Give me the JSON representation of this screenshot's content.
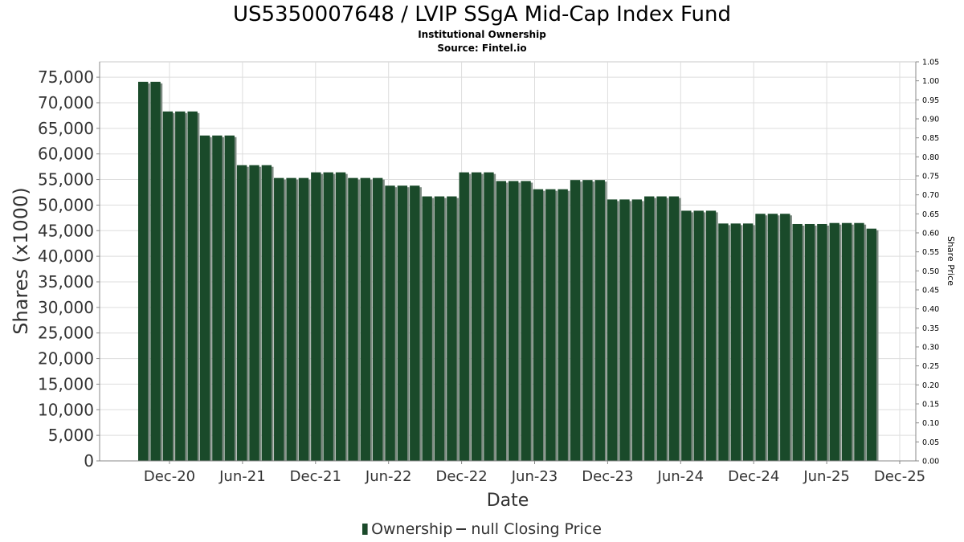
{
  "title": "US5350007648 / LVIP SSgA Mid-Cap Index Fund",
  "subtitle": "Institutional Ownership",
  "source": "Source: Fintel.io",
  "chart_data": {
    "type": "bar",
    "xlabel": "Date",
    "ylabel": "Shares (x1000)",
    "y2label": "Share Price",
    "ylim": [
      0,
      78000
    ],
    "y2lim": [
      0,
      1.05
    ],
    "x_tick_labels": [
      "Dec-20",
      "Jun-21",
      "Dec-21",
      "Jun-22",
      "Dec-22",
      "Jun-23",
      "Dec-23",
      "Jun-24",
      "Dec-24",
      "Jun-25",
      "Dec-25"
    ],
    "y_tick_labels": [
      "0",
      "5,000",
      "10,000",
      "15,000",
      "20,000",
      "25,000",
      "30,000",
      "35,000",
      "40,000",
      "45,000",
      "50,000",
      "55,000",
      "60,000",
      "65,000",
      "70,000",
      "75,000"
    ],
    "y2_tick_labels": [
      "0.00",
      "0.05",
      "0.10",
      "0.15",
      "0.20",
      "0.25",
      "0.30",
      "0.35",
      "0.40",
      "0.45",
      "0.50",
      "0.55",
      "0.60",
      "0.65",
      "0.70",
      "0.75",
      "0.80",
      "0.85",
      "0.90",
      "0.95",
      "1.00",
      "1.05"
    ],
    "grid": true,
    "legend_position": "bottom",
    "colors": {
      "bar": "#1a4a2a",
      "bar_shadow": "#7d8b82",
      "grid": "#dddddd"
    },
    "series": [
      {
        "name": "Ownership",
        "values": [
          74100,
          74100,
          68300,
          68300,
          68300,
          63600,
          63600,
          63600,
          57800,
          57800,
          57800,
          55300,
          55300,
          55300,
          56400,
          56400,
          56400,
          55300,
          55300,
          55300,
          53800,
          53800,
          53800,
          51700,
          51700,
          51700,
          56400,
          56400,
          56400,
          54700,
          54700,
          54700,
          53100,
          53100,
          53100,
          54900,
          54900,
          54900,
          51100,
          51100,
          51100,
          51700,
          51700,
          51700,
          48900,
          48900,
          48900,
          46400,
          46400,
          46400,
          48300,
          48300,
          48300,
          46300,
          46300,
          46300,
          46500,
          46500,
          46500,
          45400
        ]
      }
    ],
    "legend": [
      "Ownership",
      "null Closing Price"
    ]
  }
}
